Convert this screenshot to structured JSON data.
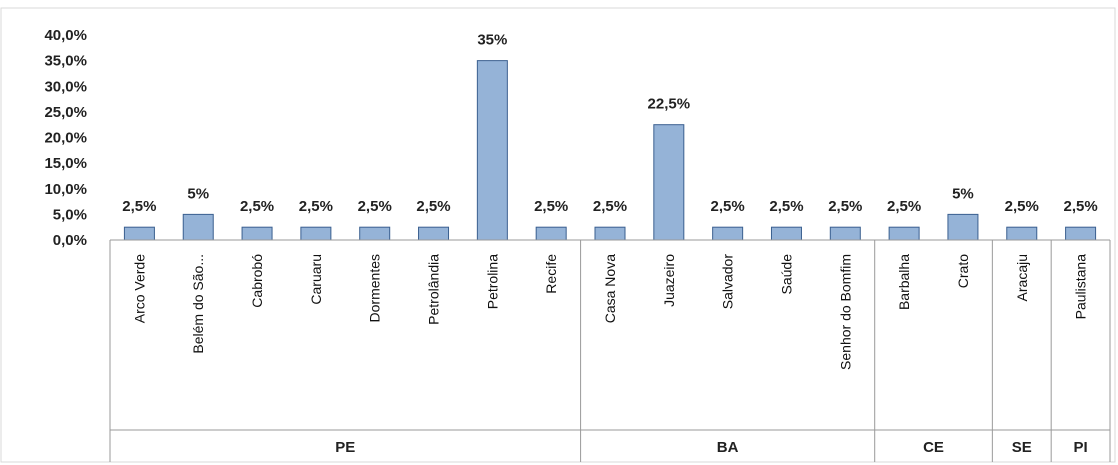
{
  "chart_data": {
    "type": "bar",
    "categories": [
      "Arco Verde",
      "Belém do São...",
      "Cabrobó",
      "Caruaru",
      "Dormentes",
      "Petrolândia",
      "Petrolina",
      "Recife",
      "Casa Nova",
      "Juazeiro",
      "Salvador",
      "Saúde",
      "Senhor do Bomfim",
      "Barbalha",
      "Crato",
      "Aracaju",
      "Paulistana"
    ],
    "values": [
      2.5,
      5,
      2.5,
      2.5,
      2.5,
      2.5,
      35,
      2.5,
      2.5,
      22.5,
      2.5,
      2.5,
      2.5,
      2.5,
      5,
      2.5,
      2.5
    ],
    "data_labels": [
      "2,5%",
      "5%",
      "2,5%",
      "2,5%",
      "2,5%",
      "2,5%",
      "35%",
      "2,5%",
      "2,5%",
      "22,5%",
      "2,5%",
      "2,5%",
      "2,5%",
      "2,5%",
      "5%",
      "2,5%",
      "2,5%"
    ],
    "groups": [
      {
        "label": "PE",
        "count": 8
      },
      {
        "label": "BA",
        "count": 5
      },
      {
        "label": "CE",
        "count": 2
      },
      {
        "label": "SE",
        "count": 1
      },
      {
        "label": "PI",
        "count": 1
      }
    ],
    "ylim": [
      0,
      40
    ],
    "yticks": [
      "0,0%",
      "5,0%",
      "10,0%",
      "15,0%",
      "20,0%",
      "25,0%",
      "30,0%",
      "35,0%",
      "40,0%"
    ],
    "grid": false,
    "legend": "none",
    "colors": {
      "bar_fill": "#95b3d7",
      "bar_stroke": "#3a5f8f"
    }
  }
}
